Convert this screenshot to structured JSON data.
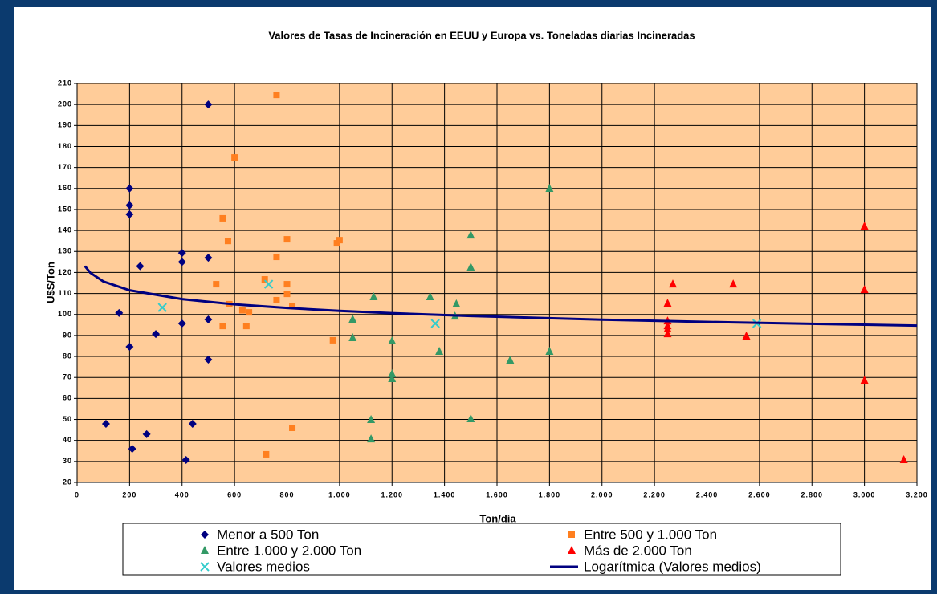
{
  "chart_data": {
    "type": "scatter",
    "title": "Valores de Tasas de Incineración en EEUU y Europa vs. Toneladas diarias Incineradas",
    "x_label": "Ton/día",
    "y_label": "U$S/Ton",
    "xlim": [
      0,
      3200
    ],
    "ylim": [
      20,
      210
    ],
    "xticks": [
      0,
      200,
      400,
      600,
      800,
      {
        "value": 1000,
        "label": "1.000"
      },
      {
        "value": 1200,
        "label": "1.200"
      },
      {
        "value": 1400,
        "label": "1.400"
      },
      {
        "value": 1600,
        "label": "1.600"
      },
      {
        "value": 1800,
        "label": "1.800"
      },
      {
        "value": 2000,
        "label": "2.000"
      },
      {
        "value": 2200,
        "label": "2.200"
      },
      {
        "value": 2400,
        "label": "2.400"
      },
      {
        "value": 2600,
        "label": "2.600"
      },
      {
        "value": 2800,
        "label": "2.800"
      },
      {
        "value": 3000,
        "label": "3.000"
      },
      {
        "value": 3200,
        "label": "3.200"
      }
    ],
    "yticks": [
      20,
      30,
      40,
      50,
      60,
      70,
      80,
      90,
      100,
      110,
      120,
      130,
      140,
      150,
      160,
      170,
      180,
      190,
      200,
      210
    ],
    "grid": true,
    "plot_background": "#FFCC99",
    "series": [
      {
        "name": "Menor a 500 Ton",
        "color": "#000080",
        "marker": "diamond",
        "x": [
          110,
          160,
          200,
          200,
          200,
          200,
          210,
          240,
          265,
          300,
          400,
          400,
          400,
          415,
          440,
          500,
          500,
          500,
          500
        ],
        "values": [
          47.9,
          100.7,
          160,
          152,
          147.7,
          84.6,
          36,
          123,
          43,
          90.7,
          129.3,
          125,
          95.7,
          30.7,
          47.9,
          200,
          127,
          97.6,
          78.5
        ]
      },
      {
        "name": "Entre 500 y 1.000 Ton",
        "color": "#FF7F1F",
        "marker": "square",
        "x": [
          760,
          600,
          555,
          575,
          530,
          580,
          555,
          630,
          655,
          645,
          715,
          760,
          760,
          800,
          800,
          800,
          820,
          820,
          720,
          975,
          990,
          1000
        ],
        "values": [
          204.6,
          174.8,
          145.8,
          135,
          114.4,
          104.9,
          94.5,
          102,
          101,
          94.5,
          116.7,
          127.4,
          106.8,
          135.8,
          114.4,
          109.8,
          104.1,
          46,
          33.4,
          87.7,
          133.9,
          135.4
        ]
      },
      {
        "name": "Entre 1.000 y 2.000 Ton",
        "color": "#339966",
        "marker": "triangle",
        "x": [
          1050,
          1050,
          1130,
          1120,
          1120,
          1200,
          1200,
          1200,
          1345,
          1445,
          1440,
          1380,
          1500,
          1500,
          1500,
          1650,
          1800,
          1800
        ],
        "values": [
          97.6,
          88.8,
          108.3,
          49.8,
          40.6,
          87.3,
          71.6,
          69.3,
          108.3,
          104.9,
          99.1,
          82.3,
          137.7,
          122.4,
          50.2,
          78.1,
          159.9,
          82.3
        ]
      },
      {
        "name": "Más de 2.000 Ton",
        "color": "#FF0000",
        "marker": "triangle",
        "x": [
          2250,
          2250,
          2250,
          2250,
          2250,
          2270,
          2500,
          2550,
          3000,
          3000,
          3000,
          3150
        ],
        "values": [
          105.2,
          96.8,
          94.5,
          93,
          90.7,
          114.4,
          114.4,
          89.6,
          141.9,
          111.7,
          68.5,
          30.7
        ]
      },
      {
        "name": "Valores medios",
        "color": "#33CCCC",
        "marker": "x",
        "x": [
          325,
          730,
          1365,
          2590
        ],
        "values": [
          103.3,
          114.4,
          95.7,
          95.7
        ]
      },
      {
        "name": "Logarítmica (Valores medios)",
        "color": "#000080",
        "marker": "line",
        "x": [
          30,
          50,
          100,
          200,
          400,
          600,
          800,
          1000,
          1200,
          1500,
          2000,
          2500,
          3000,
          3200
        ],
        "values": [
          123,
          119.9,
          115.7,
          111.5,
          107.3,
          104.8,
          103.1,
          101.7,
          100.6,
          99.3,
          97.5,
          96.2,
          95.1,
          94.7
        ]
      }
    ]
  }
}
